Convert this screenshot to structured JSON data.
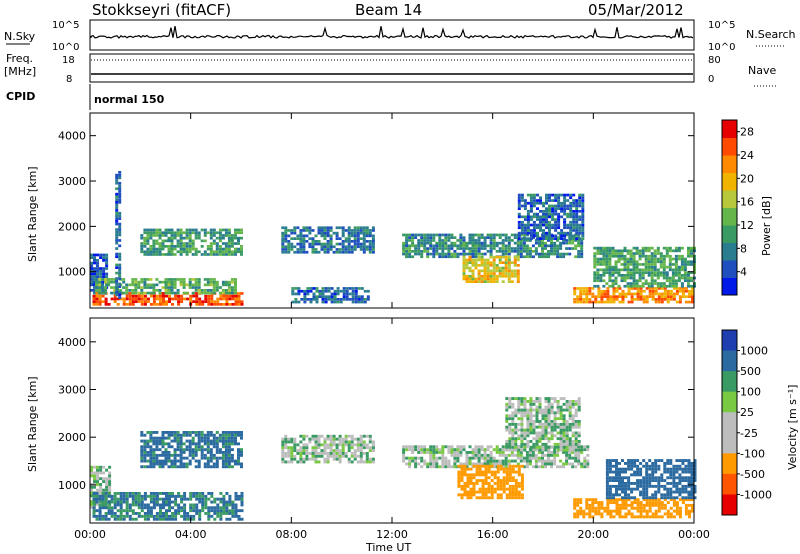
{
  "header": {
    "station": "Stokkseyri (fitACF)",
    "beam": "Beam 14",
    "date": "05/Mar/2012"
  },
  "info_panels": {
    "nsky": {
      "label": "N.Sky",
      "y_ticks": [
        "10^5",
        "10^0"
      ]
    },
    "nsearch": {
      "label": "N.Search",
      "y_ticks": [
        "10^5",
        "10^0"
      ]
    },
    "freq": {
      "label_top": "Freq.",
      "label_bottom": "[MHz]",
      "y_ticks": [
        "18",
        "8"
      ]
    },
    "nave": {
      "label": "Nave",
      "y_ticks": [
        "80",
        "0"
      ]
    },
    "cpid": {
      "label": "CPID",
      "value": "normal 150"
    }
  },
  "colors": {
    "power_scale": [
      "#0018e8",
      "#1f4fbf",
      "#2a7d8f",
      "#3a9a63",
      "#64b54a",
      "#b7c93a",
      "#f0b400",
      "#ff8a00",
      "#ff4a00",
      "#e60000"
    ],
    "velocity_scale": [
      "#e60000",
      "#ff5500",
      "#ff9a00",
      "#bdbdbd",
      "#bdbdbd",
      "#7ac943",
      "#3a9a63",
      "#2a6aa0",
      "#1f3fb0"
    ]
  },
  "chart_data": [
    {
      "type": "heatmap",
      "name": "power",
      "ylabel": "Slant Range [km]",
      "y_ticks": [
        "1000",
        "2000",
        "3000",
        "4000"
      ],
      "ylim": [
        200,
        4500
      ],
      "x_ticks": [
        "00:00",
        "04:00",
        "08:00",
        "12:00",
        "16:00",
        "20:00",
        "00:00"
      ],
      "xlim_hours": [
        0,
        24
      ],
      "colorbar": {
        "label": "Power [dB]",
        "ticks": [
          "4",
          "8",
          "12",
          "16",
          "20",
          "24",
          "28"
        ],
        "range": [
          0,
          30
        ]
      },
      "regions": [
        {
          "t0": 0.0,
          "t1": 0.7,
          "r0": 500,
          "r1": 1400,
          "value": 5
        },
        {
          "t0": 0.1,
          "t1": 6.0,
          "r0": 250,
          "r1": 550,
          "value": 25
        },
        {
          "t0": 0.2,
          "t1": 5.8,
          "r0": 500,
          "r1": 850,
          "value": 12
        },
        {
          "t0": 2.0,
          "t1": 6.0,
          "r0": 1350,
          "r1": 1900,
          "value": 10
        },
        {
          "t0": 1.0,
          "t1": 1.2,
          "r0": 400,
          "r1": 3200,
          "value": 6
        },
        {
          "t0": 7.6,
          "t1": 11.2,
          "r0": 1400,
          "r1": 1950,
          "value": 7
        },
        {
          "t0": 12.4,
          "t1": 19.6,
          "r0": 1300,
          "r1": 1800,
          "value": 9
        },
        {
          "t0": 14.8,
          "t1": 17.0,
          "r0": 750,
          "r1": 1300,
          "value": 18
        },
        {
          "t0": 17.0,
          "t1": 19.6,
          "r0": 1700,
          "r1": 2700,
          "value": 6
        },
        {
          "t0": 19.2,
          "t1": 24.0,
          "r0": 300,
          "r1": 650,
          "value": 22
        },
        {
          "t0": 20.0,
          "t1": 24.0,
          "r0": 650,
          "r1": 1500,
          "value": 11
        },
        {
          "t0": 8.0,
          "t1": 11.0,
          "r0": 300,
          "r1": 650,
          "value": 6
        }
      ]
    },
    {
      "type": "heatmap",
      "name": "velocity",
      "ylabel": "Slant Range [km]",
      "y_ticks": [
        "1000",
        "2000",
        "3000",
        "4000"
      ],
      "ylim": [
        200,
        4500
      ],
      "x_ticks": [
        "00:00",
        "04:00",
        "08:00",
        "12:00",
        "16:00",
        "20:00",
        "00:00"
      ],
      "xaxis_label": "Time UT",
      "xlim_hours": [
        0,
        24
      ],
      "colorbar": {
        "label": "Velocity [m s⁻¹]",
        "ticks": [
          "1000",
          "500",
          "100",
          "25",
          "-25",
          "-100",
          "-500",
          "-1000"
        ]
      },
      "regions": [
        {
          "t0": 0.0,
          "t1": 0.8,
          "r0": 500,
          "r1": 1400,
          "value": 0
        },
        {
          "t0": 0.1,
          "t1": 6.0,
          "r0": 250,
          "r1": 850,
          "value": 120
        },
        {
          "t0": 2.0,
          "t1": 6.0,
          "r0": 1350,
          "r1": 2100,
          "value": 150
        },
        {
          "t0": 7.6,
          "t1": 11.2,
          "r0": 1450,
          "r1": 2000,
          "value": 0
        },
        {
          "t0": 12.4,
          "t1": 19.8,
          "r0": 1350,
          "r1": 1800,
          "value": 0
        },
        {
          "t0": 14.6,
          "t1": 17.2,
          "r0": 700,
          "r1": 1400,
          "value": -400
        },
        {
          "t0": 16.5,
          "t1": 19.5,
          "r0": 1700,
          "r1": 2800,
          "value": 0
        },
        {
          "t0": 19.2,
          "t1": 24.0,
          "r0": 300,
          "r1": 700,
          "value": -200
        },
        {
          "t0": 20.5,
          "t1": 24.0,
          "r0": 700,
          "r1": 1500,
          "value": 300
        }
      ]
    }
  ]
}
